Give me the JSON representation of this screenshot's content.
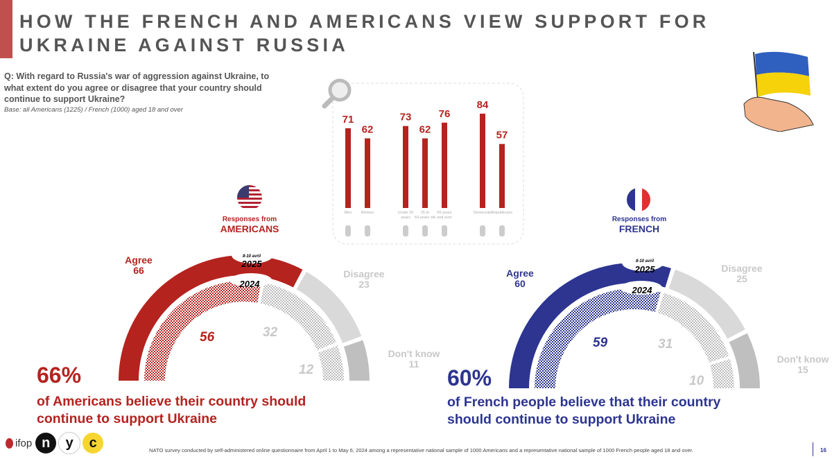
{
  "title": "HOW THE FRENCH AND AMERICANS VIEW SUPPORT FOR UKRAINE AGAINST RUSSIA",
  "question": "Q: With regard to Russia's war of aggression against Ukraine, to what extent do you agree or disagree that your country should continue to support Ukraine?",
  "base": "Base: all Americans (1225) / French (1000) aged 18 and over",
  "colors": {
    "us": "#b5231f",
    "fr": "#2d3590",
    "disagree": "#d9d9d9",
    "dontknow": "#bfbfbf",
    "inner_grey": "#c8c8c8"
  },
  "chart_data": [
    {
      "type": "bar",
      "title": "",
      "series_color": "#b5231f",
      "categories": [
        "Men",
        "Women",
        "Under 25 years",
        "25 to 64 years old",
        "65 years and over",
        "Democrats",
        "Republicans"
      ],
      "values": [
        71,
        62,
        73,
        62,
        76,
        84,
        57
      ],
      "groups": [
        [
          "Men",
          "Women"
        ],
        [
          "Under 25 years",
          "25 to 64 years old",
          "65 years and over"
        ],
        [
          "Democrats",
          "Republicans"
        ]
      ]
    },
    {
      "type": "pie",
      "variant": "half-donut",
      "country": "AMERICANS",
      "respondents_label": "Responses from",
      "date_label": "8-10 avril",
      "categories": [
        "Agree",
        "Disagree",
        "Don't know"
      ],
      "series": [
        {
          "name": "2025",
          "values": [
            66,
            23,
            11
          ]
        },
        {
          "name": "2024",
          "values": [
            56,
            32,
            12
          ]
        }
      ]
    },
    {
      "type": "pie",
      "variant": "half-donut",
      "country": "FRENCH",
      "respondents_label": "Responses from",
      "date_label": "8-10 avril",
      "categories": [
        "Agree",
        "Disagree",
        "Don't know"
      ],
      "series": [
        {
          "name": "2025",
          "values": [
            60,
            25,
            15
          ]
        },
        {
          "name": "2024",
          "values": [
            59,
            31,
            10
          ]
        }
      ]
    }
  ],
  "us": {
    "headline": "66%",
    "sentence": "of Americans believe their country should continue to support Ukraine"
  },
  "fr": {
    "headline": "60%",
    "sentence": "of French people believe that their country should continue to support Ukraine"
  },
  "logos": {
    "ifop": "ifop",
    "n": "n",
    "y": "y",
    "c": "c"
  },
  "footer": "NATO survey conducted by self-administered online questionnaire from April 1 to May 6, 2024 among a representative national sample of 1000 Americans and a representative national sample of 1000 French people aged 18 and over.",
  "page_number": "16",
  "icons": [
    "magnifier-icon",
    "us-flag-icon",
    "france-flag-icon",
    "ukraine-flag-hand-icon",
    "man-icon",
    "woman-icon",
    "child-icon",
    "adult-icon",
    "elderly-icon",
    "donkey-icon",
    "elephant-icon"
  ]
}
